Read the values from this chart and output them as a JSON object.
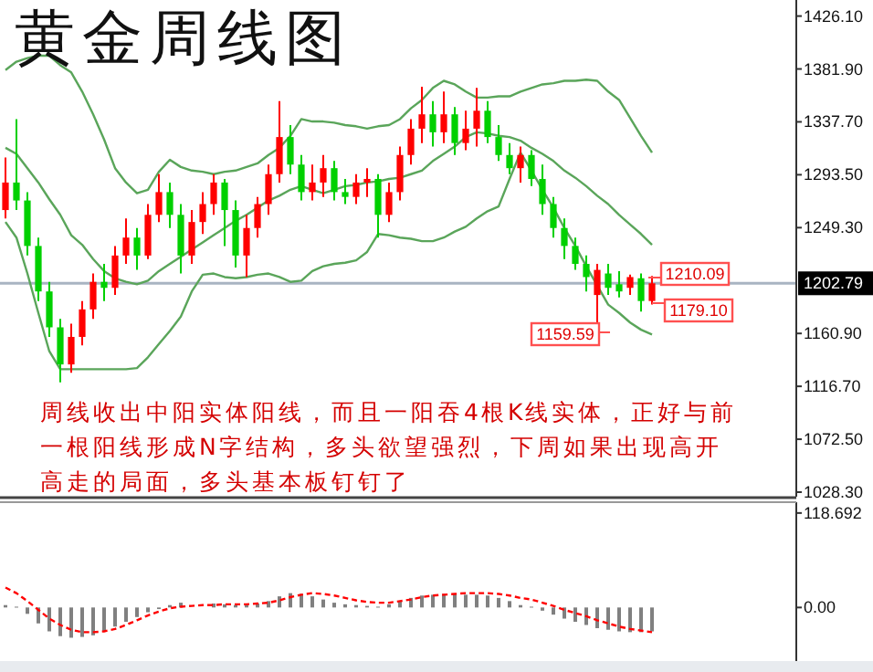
{
  "chart_data": [
    {
      "type": "candlestick",
      "title": "黄金周线图",
      "categories": [
        null,
        null,
        null,
        null,
        null,
        null,
        null,
        null,
        null,
        null,
        null,
        null,
        null,
        null,
        null,
        null,
        null,
        null,
        null,
        null,
        null,
        null,
        null,
        null,
        null,
        null,
        null,
        null,
        null,
        null,
        null,
        null,
        null,
        null,
        null,
        null,
        null,
        null,
        null,
        null,
        null,
        null,
        null,
        null,
        null,
        null,
        null,
        null,
        null,
        null,
        null,
        null,
        null,
        null,
        null,
        null,
        null,
        null,
        null,
        null
      ],
      "ohlc": [
        [
          1264,
          1308,
          1257,
          1287
        ],
        [
          1287,
          1340,
          1264,
          1272
        ],
        [
          1272,
          1279,
          1226,
          1234
        ],
        [
          1234,
          1241,
          1188,
          1196
        ],
        [
          1196,
          1204,
          1158,
          1166
        ],
        [
          1166,
          1173,
          1120,
          1135
        ],
        [
          1135,
          1169,
          1128,
          1158
        ],
        [
          1158,
          1188,
          1151,
          1181
        ],
        [
          1181,
          1211,
          1173,
          1204
        ],
        [
          1204,
          1219,
          1188,
          1199
        ],
        [
          1199,
          1234,
          1193,
          1226
        ],
        [
          1226,
          1257,
          1219,
          1241
        ],
        [
          1241,
          1249,
          1214,
          1226
        ],
        [
          1226,
          1269,
          1223,
          1260
        ],
        [
          1260,
          1294,
          1254,
          1279
        ],
        [
          1279,
          1287,
          1249,
          1260
        ],
        [
          1260,
          1269,
          1211,
          1226
        ],
        [
          1226,
          1264,
          1219,
          1254
        ],
        [
          1254,
          1279,
          1244,
          1269
        ],
        [
          1269,
          1294,
          1260,
          1287
        ],
        [
          1287,
          1290,
          1234,
          1264
        ],
        [
          1264,
          1272,
          1216,
          1226
        ],
        [
          1226,
          1260,
          1208,
          1249
        ],
        [
          1249,
          1275,
          1241,
          1269
        ],
        [
          1269,
          1302,
          1260,
          1294
        ],
        [
          1294,
          1355,
          1287,
          1325
        ],
        [
          1325,
          1335,
          1294,
          1302
        ],
        [
          1302,
          1310,
          1272,
          1279
        ],
        [
          1279,
          1302,
          1272,
          1287
        ],
        [
          1287,
          1310,
          1275,
          1299
        ],
        [
          1299,
          1305,
          1272,
          1279
        ],
        [
          1279,
          1290,
          1269,
          1275
        ],
        [
          1275,
          1294,
          1269,
          1287
        ],
        [
          1287,
          1299,
          1275,
          1290
        ],
        [
          1290,
          1294,
          1241,
          1260
        ],
        [
          1260,
          1287,
          1254,
          1279
        ],
        [
          1279,
          1317,
          1272,
          1310
        ],
        [
          1310,
          1340,
          1302,
          1332
        ],
        [
          1332,
          1367,
          1320,
          1344
        ],
        [
          1344,
          1355,
          1317,
          1329
        ],
        [
          1329,
          1363,
          1320,
          1344
        ],
        [
          1344,
          1350,
          1310,
          1320
        ],
        [
          1320,
          1347,
          1314,
          1332
        ],
        [
          1332,
          1366,
          1317,
          1347
        ],
        [
          1347,
          1355,
          1320,
          1325
        ],
        [
          1325,
          1335,
          1305,
          1310
        ],
        [
          1310,
          1320,
          1294,
          1299
        ],
        [
          1299,
          1317,
          1287,
          1310
        ],
        [
          1310,
          1314,
          1284,
          1290
        ],
        [
          1290,
          1302,
          1260,
          1269
        ],
        [
          1269,
          1275,
          1241,
          1249
        ],
        [
          1249,
          1257,
          1223,
          1234
        ],
        [
          1234,
          1241,
          1214,
          1219
        ],
        [
          1219,
          1226,
          1196,
          1208
        ],
        [
          1193,
          1219,
          1159.59,
          1214
        ],
        [
          1211,
          1219,
          1193,
          1199
        ],
        [
          1202,
          1213,
          1191,
          1196
        ],
        [
          1199,
          1210.09,
          1193,
          1208
        ],
        [
          1207,
          1211,
          1179.1,
          1188
        ],
        [
          1188,
          1209,
          1185,
          1202.79
        ]
      ],
      "colors": [
        "#ff0000",
        "#00d000",
        "#00d000",
        "#00d000",
        "#00d000",
        "#00d000",
        "#ff0000",
        "#ff0000",
        "#ff0000",
        "#00d000",
        "#ff0000",
        "#ff0000",
        "#00d000",
        "#ff0000",
        "#ff0000",
        "#00d000",
        "#00d000",
        "#ff0000",
        "#ff0000",
        "#ff0000",
        "#00d000",
        "#00d000",
        "#ff0000",
        "#ff0000",
        "#ff0000",
        "#ff0000",
        "#00d000",
        "#00d000",
        "#ff0000",
        "#ff0000",
        "#00d000",
        "#00d000",
        "#ff0000",
        "#ff0000",
        "#00d000",
        "#ff0000",
        "#ff0000",
        "#ff0000",
        "#ff0000",
        "#00d000",
        "#ff0000",
        "#00d000",
        "#ff0000",
        "#ff0000",
        "#00d000",
        "#00d000",
        "#00d000",
        "#ff0000",
        "#00d000",
        "#00d000",
        "#00d000",
        "#00d000",
        "#00d000",
        "#00d000",
        "#ff0000",
        "#00d000",
        "#00d000",
        "#ff0000",
        "#00d000",
        "#ff0000"
      ],
      "series": [
        {
          "type": "line",
          "color": "#5aa55a",
          "values": [
            1381,
            1388,
            1391,
            1393,
            1393,
            1385,
            1379,
            1363,
            1344,
            1323,
            1299,
            1287,
            1278,
            1281,
            1296,
            1306,
            1300,
            1297,
            1296,
            1294,
            1296,
            1297,
            1300,
            1303,
            1310,
            1316,
            1326,
            1340,
            1338,
            1338,
            1337,
            1335,
            1334,
            1332,
            1334,
            1335,
            1340,
            1349,
            1356,
            1366,
            1372,
            1369,
            1363,
            1358,
            1358,
            1359,
            1359,
            1363,
            1366,
            1369,
            1370,
            1372,
            1372,
            1373,
            1372,
            1363,
            1356,
            1341,
            1326,
            1312
          ]
        },
        {
          "type": "line",
          "color": "#5aa55a",
          "values": [
            1316,
            1311,
            1299,
            1287,
            1273,
            1260,
            1243,
            1235,
            1223,
            1213,
            1207,
            1204,
            1202,
            1205,
            1213,
            1219,
            1225,
            1231,
            1237,
            1243,
            1249,
            1255,
            1260,
            1266,
            1272,
            1276,
            1281,
            1284,
            1281,
            1278,
            1281,
            1284,
            1285,
            1287,
            1288,
            1290,
            1291,
            1294,
            1297,
            1305,
            1311,
            1317,
            1325,
            1329,
            1328,
            1326,
            1325,
            1322,
            1316,
            1311,
            1305,
            1297,
            1291,
            1284,
            1276,
            1269,
            1260,
            1252,
            1244,
            1235
          ]
        },
        {
          "type": "line",
          "color": "#5aa55a",
          "values": [
            1254,
            1241,
            1211,
            1178,
            1146,
            1131,
            1131,
            1131,
            1131,
            1131,
            1131,
            1131,
            1132,
            1141,
            1152,
            1163,
            1175,
            1196,
            1210,
            1211,
            1208,
            1207,
            1208,
            1210,
            1211,
            1208,
            1204,
            1205,
            1213,
            1217,
            1219,
            1220,
            1222,
            1229,
            1244,
            1243,
            1241,
            1240,
            1238,
            1238,
            1241,
            1246,
            1250,
            1257,
            1263,
            1267,
            1290,
            1312,
            1297,
            1281,
            1266,
            1249,
            1234,
            1217,
            1201,
            1185,
            1178,
            1170,
            1164,
            1160
          ]
        }
      ],
      "ylim": [
        1026,
        1438
      ],
      "yticks": [
        {
          "value": 1426.1,
          "label": "1426.10"
        },
        {
          "value": 1381.9,
          "label": "1381.90"
        },
        {
          "value": 1337.7,
          "label": "1337.70"
        },
        {
          "value": 1293.5,
          "label": "1293.50"
        },
        {
          "value": 1249.3,
          "label": "1249.30"
        },
        {
          "value": 1160.9,
          "label": "1160.90"
        },
        {
          "value": 1116.7,
          "label": "1116.70"
        },
        {
          "value": 1072.5,
          "label": "1072.50"
        },
        {
          "value": 1028.3,
          "label": "1028.30"
        }
      ],
      "ref_lines": [
        {
          "axis": "y",
          "value": 1202.79,
          "label": "1202.79",
          "color": "#a9b4c2"
        }
      ],
      "annotations": [
        "周线收出中阳实体阳线，而且一阳吞4根K线实体，正好与前一根阳线形成N字结构，多头欲望强烈，下周如果出现高开高走的局面，多头基本板钉钉了",
        "1210.09",
        "1179.10",
        "1159.59"
      ]
    },
    {
      "type": "bar",
      "categories": [
        null,
        null,
        null,
        null,
        null,
        null,
        null,
        null,
        null,
        null,
        null,
        null,
        null,
        null,
        null,
        null,
        null,
        null,
        null,
        null,
        null,
        null,
        null,
        null,
        null,
        null,
        null,
        null,
        null,
        null,
        null,
        null,
        null,
        null,
        null,
        null,
        null,
        null,
        null,
        null,
        null,
        null,
        null,
        null,
        null,
        null,
        null,
        null,
        null,
        null,
        null,
        null,
        null,
        null,
        null,
        null,
        null,
        null,
        null,
        null
      ],
      "series": [
        {
          "type": "bar",
          "color": "#808080",
          "values": [
            3,
            1,
            -8,
            -20,
            -30,
            -36,
            -38,
            -37,
            -35,
            -30,
            -24,
            -18,
            -12,
            -6,
            -2,
            3,
            6,
            null,
            null,
            5,
            4,
            3,
            3,
            5,
            8,
            14,
            18,
            17,
            14,
            10,
            6,
            4,
            3,
            2,
            1,
            4,
            8,
            12,
            15,
            16,
            17,
            17,
            16,
            16,
            15,
            12,
            8,
            3,
            1,
            -4,
            -9,
            -14,
            -18,
            -22,
            -26,
            -28,
            -30,
            -31,
            -31,
            -30
          ]
        },
        {
          "type": "line",
          "color": "#ff0000",
          "line_style": "dashed",
          "values": [
            25,
            18,
            8,
            -3,
            -14,
            -22,
            -28,
            -31,
            -31,
            -30,
            -27,
            -22,
            -16,
            -10,
            -5,
            -1,
            1,
            2,
            3,
            3,
            4,
            4,
            4,
            5,
            6,
            9,
            13,
            16,
            18,
            17,
            15,
            12,
            9,
            7,
            6,
            6,
            8,
            10,
            13,
            15,
            16,
            17,
            18,
            18,
            18,
            17,
            15,
            12,
            10,
            6,
            2,
            -3,
            -7,
            -11,
            -16,
            -20,
            -24,
            -27,
            -29,
            -31
          ]
        }
      ],
      "ylim": [
        -65,
        130
      ],
      "yticks": [
        {
          "value": 0,
          "label": "0.00"
        },
        118.692
      ]
    }
  ]
}
